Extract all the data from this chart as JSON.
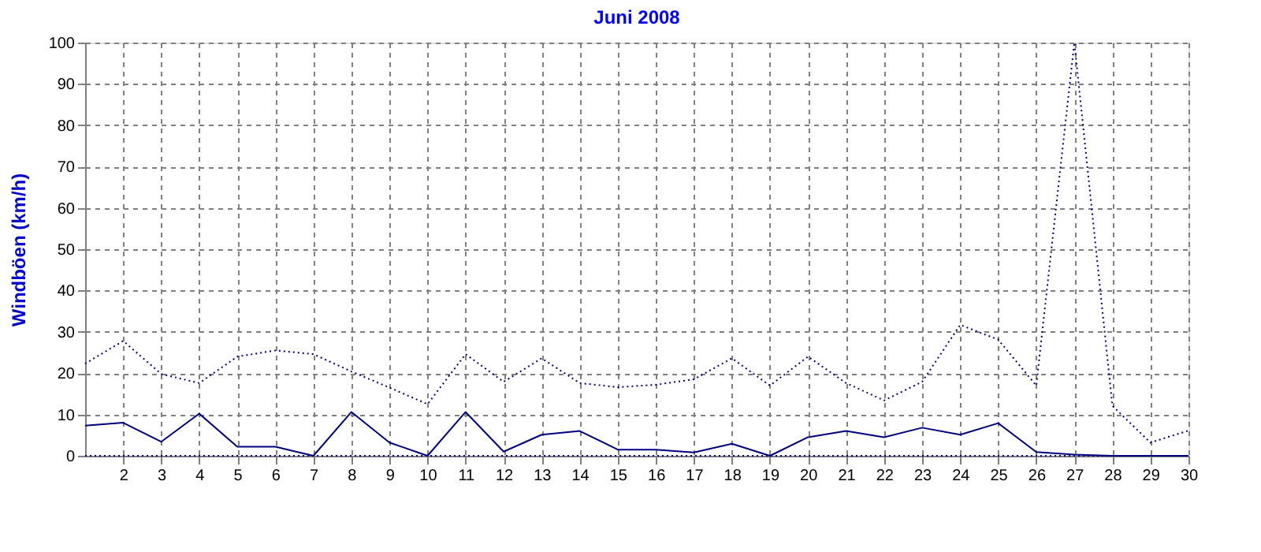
{
  "chart_data": {
    "type": "line",
    "title": "Juni 2008",
    "ylabel": "Windböen  (km/h)",
    "x": [
      1,
      2,
      3,
      4,
      5,
      6,
      7,
      8,
      9,
      10,
      11,
      12,
      13,
      14,
      15,
      16,
      17,
      18,
      19,
      20,
      21,
      22,
      23,
      24,
      25,
      26,
      27,
      28,
      29,
      30
    ],
    "series": [
      {
        "color": "#000080",
        "line_style": "dotted",
        "values": [
          22.3,
          27.8,
          19.8,
          17.6,
          24,
          25.5,
          24.6,
          20.4,
          16.5,
          12.5,
          24.6,
          17.9,
          23.6,
          17.6,
          16.6,
          17.2,
          18.5,
          23.6,
          17,
          24,
          17.6,
          13.4,
          17.9,
          31.7,
          28.1,
          17,
          100,
          12.1,
          3.2,
          6.1
        ]
      },
      {
        "color": "#000080",
        "line_style": "solid",
        "values": [
          7.3,
          8.0,
          3.4,
          10.2,
          2.2,
          2.2,
          0,
          10.6,
          3.2,
          0,
          10.6,
          1,
          5.1,
          6,
          1.5,
          1.5,
          0.8,
          2.9,
          0,
          4.5,
          6,
          4.5,
          6.8,
          5.1,
          7.9,
          0.9,
          0.3,
          0,
          0,
          0
        ]
      },
      {
        "color": "#000080",
        "line_style": "dotted",
        "values": [
          0,
          0,
          0,
          0,
          0,
          0,
          0,
          0,
          0,
          0,
          0,
          0,
          0,
          0,
          0,
          0,
          0,
          0,
          0,
          0,
          0,
          0,
          0,
          0,
          0,
          0,
          0,
          0,
          0,
          0
        ]
      }
    ],
    "xlim": [
      1,
      30
    ],
    "xticks": [
      2,
      3,
      4,
      5,
      6,
      7,
      8,
      9,
      10,
      11,
      12,
      13,
      14,
      15,
      16,
      17,
      18,
      19,
      20,
      21,
      22,
      23,
      24,
      25,
      26,
      27,
      28,
      29,
      30
    ],
    "ylim": [
      0,
      100
    ],
    "yticks": [
      0,
      10,
      20,
      30,
      40,
      50,
      60,
      70,
      80,
      90,
      100
    ],
    "grid": true,
    "legend": false
  }
}
